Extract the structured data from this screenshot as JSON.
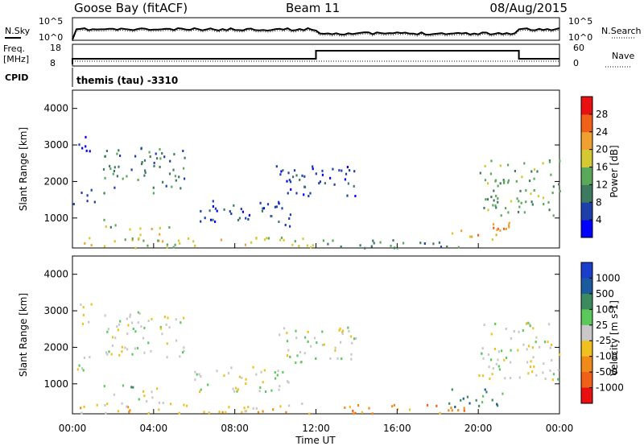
{
  "header": {
    "radar": "Goose Bay (fitACF)",
    "beam": "Beam 11",
    "date": "08/Aug/2015"
  },
  "noise_panel": {
    "left_label": "N.Sky",
    "right_label": "N.Search",
    "left_ticks": [
      "10^5",
      "10^0"
    ],
    "right_ticks": [
      "10^5",
      "10^0"
    ]
  },
  "freq_panel": {
    "left_label_1": "Freq.",
    "left_label_2": "[MHz]",
    "left_ticks": [
      "18",
      "8"
    ],
    "right_label": "Nave",
    "right_ticks": [
      "60",
      "0"
    ]
  },
  "cpid": {
    "label": "CPID",
    "value": "themis (tau) -3310"
  },
  "chart_data": [
    {
      "type": "heatmap",
      "title": "Power",
      "ylabel": "Slant Range [km]",
      "xlabel": "",
      "y_ticks": [
        "1000",
        "2000",
        "3000",
        "4000"
      ],
      "ylim": [
        180,
        4500
      ],
      "xlim_hours": [
        0,
        24
      ],
      "colorbar": {
        "label": "Power [dB]",
        "ticks": [
          "4",
          "8",
          "12",
          "16",
          "20",
          "24",
          "28"
        ],
        "colors": [
          "#0000ff",
          "#1c3faa",
          "#3d7a5f",
          "#5aa85a",
          "#d4c833",
          "#f0a030",
          "#f06018",
          "#e81010"
        ]
      },
      "scatter_regions": [
        {
          "t": [
            0.0,
            1.4
          ],
          "r": [
            1400,
            1800
          ],
          "level": 1
        },
        {
          "t": [
            0.2,
            1.0
          ],
          "r": [
            2600,
            3300
          ],
          "level": 0
        },
        {
          "t": [
            1.5,
            5.5
          ],
          "r": [
            1700,
            3000
          ],
          "level": 2
        },
        {
          "t": [
            1.5,
            3.0
          ],
          "r": [
            700,
            1000
          ],
          "level": 3
        },
        {
          "t": [
            3.2,
            4.8
          ],
          "r": [
            400,
            900
          ],
          "level": 4
        },
        {
          "t": [
            0.0,
            12.0
          ],
          "r": [
            200,
            500
          ],
          "level": 4
        },
        {
          "t": [
            6.0,
            11.0
          ],
          "r": [
            800,
            1500
          ],
          "level": 1
        },
        {
          "t": [
            10.0,
            14.0
          ],
          "r": [
            1600,
            2600
          ],
          "level": 1
        },
        {
          "t": [
            12.0,
            20.0
          ],
          "r": [
            200,
            450
          ],
          "level": 2
        },
        {
          "t": [
            18.5,
            21.5
          ],
          "r": [
            400,
            900
          ],
          "level": 5
        },
        {
          "t": [
            20.0,
            24.0
          ],
          "r": [
            1100,
            2700
          ],
          "level": 3
        }
      ]
    },
    {
      "type": "heatmap",
      "title": "Velocity",
      "ylabel": "Slant Range [km]",
      "xlabel": "Time UT",
      "y_ticks": [
        "1000",
        "2000",
        "3000",
        "4000"
      ],
      "ylim": [
        180,
        4500
      ],
      "x_ticks": [
        "00:00",
        "04:00",
        "08:00",
        "12:00",
        "16:00",
        "20:00",
        "00:00"
      ],
      "xlim_hours": [
        0,
        24
      ],
      "colorbar": {
        "label": "Velocity [m s-1]",
        "ticks": [
          "1000",
          "500",
          "100",
          "25",
          "-25",
          "-100",
          "-500",
          "-1000"
        ],
        "colors": [
          "#1a3fcc",
          "#1c5aa0",
          "#3d8a5f",
          "#5ac85a",
          "#c8c8c8",
          "#f0c020",
          "#f08a18",
          "#f06018",
          "#e81010"
        ]
      },
      "scatter_regions": [
        {
          "t": [
            0.0,
            1.4
          ],
          "r": [
            1400,
            1800
          ],
          "level": 4
        },
        {
          "t": [
            0.2,
            1.0
          ],
          "r": [
            2600,
            3300
          ],
          "level": 4
        },
        {
          "t": [
            1.5,
            5.5
          ],
          "r": [
            1700,
            3000
          ],
          "level": 4
        },
        {
          "t": [
            1.5,
            3.0
          ],
          "r": [
            700,
            1000
          ],
          "level": 3
        },
        {
          "t": [
            3.2,
            4.8
          ],
          "r": [
            400,
            900
          ],
          "level": 4
        },
        {
          "t": [
            0.0,
            12.0
          ],
          "r": [
            200,
            500
          ],
          "level": 5
        },
        {
          "t": [
            6.0,
            11.0
          ],
          "r": [
            800,
            1500
          ],
          "level": 4
        },
        {
          "t": [
            10.0,
            14.0
          ],
          "r": [
            1600,
            2600
          ],
          "level": 4
        },
        {
          "t": [
            12.0,
            20.0
          ],
          "r": [
            200,
            450
          ],
          "level": 6
        },
        {
          "t": [
            18.5,
            21.5
          ],
          "r": [
            400,
            900
          ],
          "level": 2
        },
        {
          "t": [
            20.0,
            24.0
          ],
          "r": [
            1100,
            2700
          ],
          "level": 4
        }
      ]
    }
  ]
}
